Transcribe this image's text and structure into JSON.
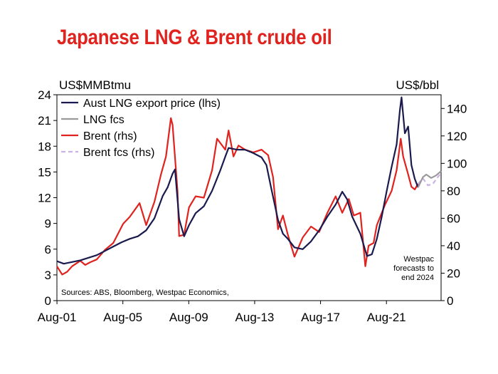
{
  "title": "Japanese LNG & Brent crude oil",
  "chart_data": {
    "type": "line",
    "title": "Japanese LNG & Brent crude oil",
    "left_axis": {
      "unit_label": "US$MMBtmu",
      "ylim": [
        0,
        24
      ],
      "ticks": [
        "0",
        "3",
        "6",
        "9",
        "12",
        "15",
        "18",
        "21",
        "24"
      ]
    },
    "right_axis": {
      "unit_label": "US$/bbl",
      "ylim": [
        0,
        150
      ],
      "ticks": [
        "0",
        "20",
        "40",
        "60",
        "80",
        "100",
        "120",
        "140"
      ]
    },
    "x_axis": {
      "range": [
        2001.58,
        2024.9
      ],
      "ticks": [
        "Aug-01",
        "Aug-05",
        "Aug-09",
        "Aug-13",
        "Aug-17",
        "Aug-21"
      ]
    },
    "legend_position": "top-left",
    "source_note": "Sources: ABS, Bloomberg, Westpac Economics,",
    "annotation": [
      "Westpac",
      "forecasts to",
      "end 2024"
    ],
    "series": [
      {
        "name": "Aust LNG export price (lhs)",
        "axis": "left",
        "color": "#1a1a4e",
        "x": [
          2001.58,
          2002.0,
          2002.5,
          2003.0,
          2003.5,
          2004.0,
          2004.5,
          2005.0,
          2005.5,
          2006.0,
          2006.5,
          2007.0,
          2007.5,
          2008.0,
          2008.3,
          2008.6,
          2008.75,
          2009.0,
          2009.3,
          2009.6,
          2010.0,
          2010.5,
          2011.0,
          2011.5,
          2011.8,
          2012.0,
          2012.5,
          2013.0,
          2013.5,
          2014.0,
          2014.3,
          2014.6,
          2015.0,
          2015.3,
          2015.6,
          2016.0,
          2016.5,
          2017.0,
          2017.5,
          2018.0,
          2018.5,
          2018.9,
          2019.2,
          2019.5,
          2020.0,
          2020.4,
          2020.7,
          2021.0,
          2021.3,
          2021.6,
          2021.9,
          2022.2,
          2022.4,
          2022.5,
          2022.7,
          2022.9,
          2023.1,
          2023.3,
          2023.5
        ],
        "values": [
          4.6,
          4.3,
          4.5,
          4.7,
          5.0,
          5.3,
          5.8,
          6.3,
          6.8,
          7.2,
          7.5,
          8.2,
          9.6,
          12.2,
          13.2,
          14.8,
          15.3,
          9.5,
          7.5,
          8.8,
          10.2,
          11.0,
          12.8,
          15.2,
          16.8,
          17.8,
          17.6,
          17.6,
          17.2,
          16.7,
          15.8,
          13.0,
          9.4,
          7.8,
          7.2,
          6.2,
          6.0,
          6.9,
          8.2,
          9.8,
          11.2,
          12.7,
          11.8,
          9.8,
          7.8,
          5.2,
          5.4,
          7.2,
          9.8,
          12.8,
          15.6,
          18.2,
          22.2,
          23.7,
          19.5,
          20.3,
          15.8,
          14.2,
          13.2
        ]
      },
      {
        "name": "LNG fcs",
        "axis": "left",
        "color": "#9a9a9a",
        "x": [
          2023.5,
          2023.8,
          2024.0,
          2024.3,
          2024.6,
          2024.9
        ],
        "values": [
          13.2,
          14.4,
          14.7,
          14.3,
          14.6,
          15.1
        ]
      },
      {
        "name": "Brent (rhs)",
        "axis": "right",
        "color": "#e0231e",
        "x": [
          2001.58,
          2001.9,
          2002.2,
          2002.5,
          2003.0,
          2003.3,
          2003.6,
          2004.0,
          2004.5,
          2005.0,
          2005.6,
          2006.0,
          2006.6,
          2007.0,
          2007.5,
          2007.9,
          2008.2,
          2008.5,
          2008.6,
          2008.9,
          2009.0,
          2009.3,
          2009.6,
          2010.0,
          2010.5,
          2011.0,
          2011.3,
          2011.8,
          2012.0,
          2012.3,
          2012.6,
          2013.0,
          2013.5,
          2014.0,
          2014.4,
          2014.7,
          2015.0,
          2015.3,
          2015.6,
          2016.0,
          2016.5,
          2017.0,
          2017.5,
          2018.0,
          2018.5,
          2018.9,
          2019.3,
          2019.6,
          2020.0,
          2020.3,
          2020.5,
          2020.8,
          2021.0,
          2021.5,
          2021.9,
          2022.2,
          2022.45,
          2022.6,
          2022.9,
          2023.1,
          2023.3,
          2023.5
        ],
        "values": [
          25,
          19,
          21,
          25,
          29,
          26,
          28,
          30,
          37,
          42,
          56,
          61,
          71,
          55,
          72,
          92,
          105,
          133,
          128,
          80,
          47,
          48,
          68,
          76,
          75,
          95,
          118,
          110,
          124,
          105,
          113,
          110,
          108,
          110,
          106,
          90,
          52,
          62,
          48,
          32,
          46,
          54,
          50,
          64,
          76,
          64,
          74,
          62,
          64,
          25,
          40,
          42,
          55,
          70,
          80,
          95,
          118,
          105,
          92,
          83,
          81,
          85
        ]
      },
      {
        "name": "Brent fcs (rhs)",
        "axis": "right",
        "color": "#c9b3e6",
        "x": [
          2023.5,
          2023.8,
          2024.1,
          2024.4,
          2024.7,
          2024.9
        ],
        "values": [
          85,
          89,
          84,
          85,
          90,
          93
        ]
      }
    ]
  }
}
